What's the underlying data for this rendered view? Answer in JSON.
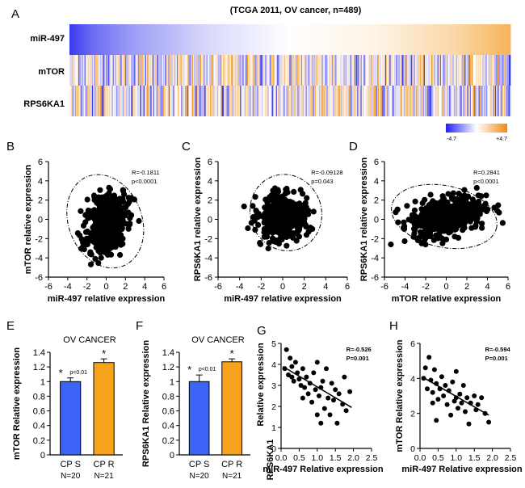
{
  "colors": {
    "blue": "#3a3af0",
    "orange": "#f39b22",
    "bar_blue": "#3b63f5",
    "bar_orange": "#f7a21b"
  },
  "chart_data": [
    {
      "panel": "A",
      "type": "heatmap",
      "title": "(TCGA  2011, OV cancer,  n=489)",
      "rows": [
        "miR-497",
        "mTOR",
        "RPS6KA1"
      ],
      "n_samples": 489,
      "sort_row": "miR-497",
      "mir497_gradient": [
        {
          "at": 0.0,
          "level": -3.2
        },
        {
          "at": 0.05,
          "level": -2.4
        },
        {
          "at": 0.14,
          "level": -1.6
        },
        {
          "at": 0.32,
          "level": -0.6
        },
        {
          "at": 0.5,
          "level": 0.0
        },
        {
          "at": 0.7,
          "level": 0.4
        },
        {
          "at": 0.88,
          "level": 1.3
        },
        {
          "at": 1.0,
          "level": 2.4
        }
      ],
      "colorbar": {
        "min": -4.7,
        "max": 4.7,
        "min_label": "-4.7",
        "max_label": "+4.7"
      }
    },
    {
      "panel": "B",
      "type": "scatter",
      "xlabel": "miR-497 relative expression",
      "ylabel": "mTOR relative expression",
      "xlim": [
        -6,
        6
      ],
      "ylim": [
        -6,
        6
      ],
      "xticks": [
        -6,
        -4,
        -2,
        0,
        2,
        4,
        6
      ],
      "yticks": [
        -6,
        -4,
        -2,
        0,
        2,
        4,
        6
      ],
      "stat_r": "R=-0.1811",
      "stat_p": "p<0.0001",
      "cloud": {
        "cx": 0.0,
        "cy": -0.4,
        "sx": 1.0,
        "sy": 1.6,
        "n": 489,
        "angle": -18
      },
      "ellipse": {
        "cx": -0.1,
        "cy": -0.2,
        "rx": 3.8,
        "ry": 5.0,
        "angle": -22
      }
    },
    {
      "panel": "C",
      "type": "scatter",
      "xlabel": "miR-497 relative expression",
      "ylabel": "RPS6KA1 relative expression",
      "xlim": [
        -6,
        6
      ],
      "ylim": [
        -6,
        6
      ],
      "xticks": [
        -6,
        -4,
        -2,
        0,
        2,
        4,
        6
      ],
      "yticks": [
        -6,
        -4,
        -2,
        0,
        2,
        4,
        6
      ],
      "stat_r": "R=-0.09128",
      "stat_p": "p=0.043",
      "cloud": {
        "cx": 0.0,
        "cy": 0.2,
        "sx": 1.0,
        "sy": 1.1,
        "n": 489,
        "angle": -15
      },
      "ellipse": {
        "cx": 0.3,
        "cy": 0.7,
        "rx": 3.3,
        "ry": 4.0,
        "angle": -20
      }
    },
    {
      "panel": "D",
      "type": "scatter",
      "xlabel": "mTOR relative expression",
      "ylabel": "RPS6KA1 relative expression",
      "xlim": [
        -6,
        6
      ],
      "ylim": [
        -6,
        6
      ],
      "xticks": [
        -6,
        -4,
        -2,
        0,
        2,
        4,
        6
      ],
      "yticks": [
        -6,
        -4,
        -2,
        0,
        2,
        4,
        6
      ],
      "stat_r": "R=0.2841",
      "stat_p": "p<0.0001",
      "cloud": {
        "cx": 0.0,
        "cy": 0.4,
        "sx": 1.8,
        "sy": 1.0,
        "n": 489,
        "angle": 15
      },
      "ellipse": {
        "cx": -0.2,
        "cy": 0.3,
        "rx": 5.2,
        "ry": 3.2,
        "angle": 12
      }
    },
    {
      "panel": "E",
      "type": "bar",
      "title": "OV CANCER",
      "ylabel": "mTOR Relative expression",
      "ylim": [
        0,
        1.4
      ],
      "yticks": [
        0,
        0.2,
        0.4,
        0.6,
        0.8,
        1,
        1.2,
        1.4
      ],
      "categories": [
        "CP S",
        "CP R"
      ],
      "n_labels": [
        "N=20",
        "N=21"
      ],
      "values": [
        1.0,
        1.26
      ],
      "errors": [
        0.05,
        0.05
      ],
      "bar_colors": [
        "#3b63f5",
        "#f7a21b"
      ],
      "stars": [
        "*",
        "*"
      ],
      "pvalue": "p<0.01"
    },
    {
      "panel": "F",
      "type": "bar",
      "title": "OV CANCER",
      "ylabel": "RPS6KA1  Relative expression",
      "ylim": [
        0,
        1.4
      ],
      "yticks": [
        0,
        0.2,
        0.4,
        0.6,
        0.8,
        1,
        1.2,
        1.4
      ],
      "categories": [
        "CP S",
        "CP R"
      ],
      "n_labels": [
        "N=20",
        "N=21"
      ],
      "values": [
        1.0,
        1.27
      ],
      "errors": [
        0.09,
        0.04
      ],
      "bar_colors": [
        "#3b63f5",
        "#f7a21b"
      ],
      "stars": [
        "*",
        "*"
      ],
      "pvalue": "p<0.01"
    },
    {
      "panel": "G",
      "type": "scatter",
      "xlabel": "miR-497 Relative expression",
      "ylabel": "RPS6KA1",
      "ylabel2": "Relative expression",
      "xlim": [
        0,
        2.5
      ],
      "ylim": [
        0,
        5
      ],
      "xticks": [
        0.0,
        0.5,
        1.0,
        1.5,
        2.0,
        2.5
      ],
      "xtick_labels": [
        "0.0",
        "0.5",
        "1.0",
        "1.5",
        "2.0",
        "2.5"
      ],
      "yticks": [
        0,
        1,
        2,
        3,
        4,
        5
      ],
      "stat_r": "R=-0.526",
      "stat_p": "P=0.001",
      "points": [
        [
          0.1,
          3.8
        ],
        [
          0.15,
          4.7
        ],
        [
          0.2,
          3.5
        ],
        [
          0.25,
          4.3
        ],
        [
          0.3,
          3.9
        ],
        [
          0.35,
          3.2
        ],
        [
          0.4,
          4.1
        ],
        [
          0.45,
          3.6
        ],
        [
          0.5,
          3.3
        ],
        [
          0.55,
          3.0
        ],
        [
          0.6,
          3.8
        ],
        [
          0.65,
          2.9
        ],
        [
          0.7,
          3.4
        ],
        [
          0.75,
          2.6
        ],
        [
          0.8,
          3.1
        ],
        [
          0.85,
          2.2
        ],
        [
          0.9,
          3.6
        ],
        [
          0.95,
          2.8
        ],
        [
          1.0,
          4.1
        ],
        [
          1.05,
          2.5
        ],
        [
          1.1,
          1.2
        ],
        [
          1.1,
          2.9
        ],
        [
          1.15,
          3.2
        ],
        [
          1.2,
          1.9
        ],
        [
          1.25,
          3.8
        ],
        [
          1.3,
          2.4
        ],
        [
          1.35,
          1.6
        ],
        [
          1.4,
          3.1
        ],
        [
          1.45,
          2.3
        ],
        [
          1.5,
          2.8
        ],
        [
          1.55,
          1.2
        ],
        [
          1.6,
          2.6
        ],
        [
          1.7,
          2.1
        ],
        [
          1.75,
          3.4
        ],
        [
          1.8,
          1.8
        ],
        [
          1.9,
          2.7
        ],
        [
          0.6,
          2.4
        ],
        [
          0.3,
          3.4
        ],
        [
          1.0,
          1.6
        ]
      ],
      "fit": {
        "x": [
          0.05,
          1.95
        ],
        "y": [
          3.9,
          1.95
        ]
      }
    },
    {
      "panel": "H",
      "type": "scatter",
      "xlabel": "miR-497 Relative expression",
      "ylabel": "mTOR Relative expression",
      "xlim": [
        0,
        2.5
      ],
      "ylim": [
        0,
        6
      ],
      "xticks": [
        0.0,
        0.5,
        1.0,
        1.5,
        2.0,
        2.5
      ],
      "xtick_labels": [
        "0.0",
        "0.5",
        "1.0",
        "1.5",
        "2.0",
        "2.5"
      ],
      "yticks": [
        0,
        2,
        4,
        6
      ],
      "stat_r": "R=-0.594",
      "stat_p": "P=0.001",
      "points": [
        [
          0.1,
          4.0
        ],
        [
          0.15,
          4.6
        ],
        [
          0.2,
          3.4
        ],
        [
          0.25,
          5.2
        ],
        [
          0.3,
          3.9
        ],
        [
          0.35,
          3.2
        ],
        [
          0.4,
          4.5
        ],
        [
          0.45,
          3.7
        ],
        [
          0.5,
          2.8
        ],
        [
          0.55,
          3.4
        ],
        [
          0.6,
          4.1
        ],
        [
          0.65,
          3.0
        ],
        [
          0.7,
          3.6
        ],
        [
          0.75,
          2.5
        ],
        [
          0.8,
          3.3
        ],
        [
          0.85,
          1.9
        ],
        [
          0.9,
          3.8
        ],
        [
          0.95,
          2.7
        ],
        [
          1.0,
          4.4
        ],
        [
          1.05,
          2.3
        ],
        [
          1.1,
          3.1
        ],
        [
          1.15,
          2.6
        ],
        [
          1.2,
          3.6
        ],
        [
          1.25,
          2.1
        ],
        [
          1.3,
          2.9
        ],
        [
          1.35,
          1.4
        ],
        [
          1.4,
          2.6
        ],
        [
          1.5,
          3.0
        ],
        [
          1.55,
          2.2
        ],
        [
          1.6,
          2.5
        ],
        [
          1.7,
          2.9
        ],
        [
          1.8,
          2.0
        ],
        [
          1.9,
          1.5
        ],
        [
          0.45,
          1.6
        ],
        [
          0.35,
          2.6
        ],
        [
          1.0,
          2.9
        ]
      ],
      "fit": {
        "x": [
          0.05,
          1.9
        ],
        "y": [
          4.1,
          1.9
        ]
      }
    }
  ],
  "panel_letters": [
    "A",
    "B",
    "C",
    "D",
    "E",
    "F",
    "G",
    "H"
  ]
}
